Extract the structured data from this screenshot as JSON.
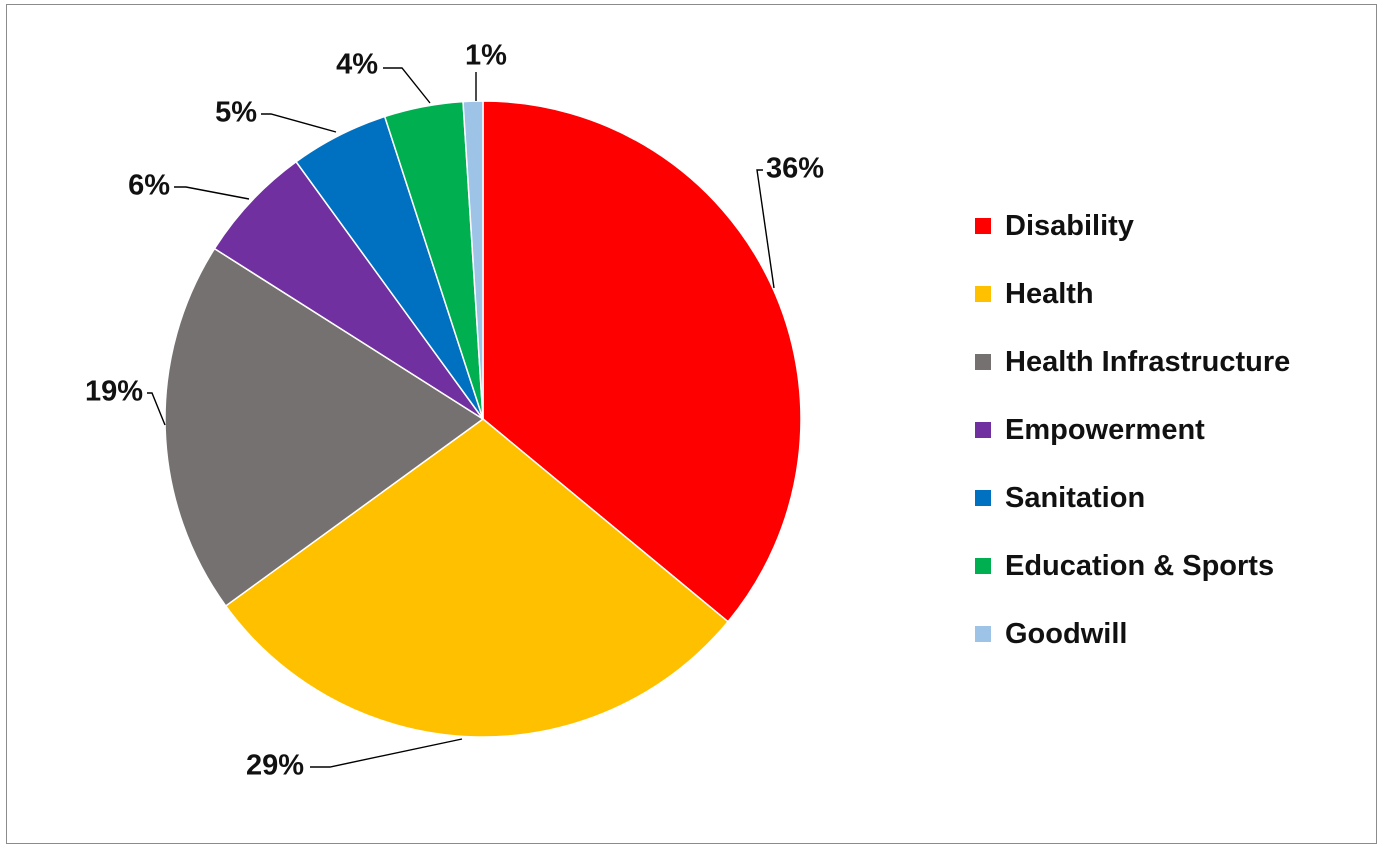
{
  "chart_data": {
    "type": "pie",
    "title": "",
    "legend_position": "right",
    "slices": [
      {
        "name": "Disability",
        "value": 36,
        "label": "36%",
        "color": "#ff0000"
      },
      {
        "name": "Health",
        "value": 29,
        "label": "29%",
        "color": "#ffc000"
      },
      {
        "name": "Health Infrastructure",
        "value": 19,
        "label": "19%",
        "color": "#767171"
      },
      {
        "name": "Empowerment",
        "value": 6,
        "label": "6%",
        "color": "#7030a0"
      },
      {
        "name": "Sanitation",
        "value": 5,
        "label": "5%",
        "color": "#0070c0"
      },
      {
        "name": "Education & Sports",
        "value": 4,
        "label": "4%",
        "color": "#00b050"
      },
      {
        "name": "Goodwill",
        "value": 1,
        "label": "1%",
        "color": "#9dc3e6"
      }
    ]
  }
}
